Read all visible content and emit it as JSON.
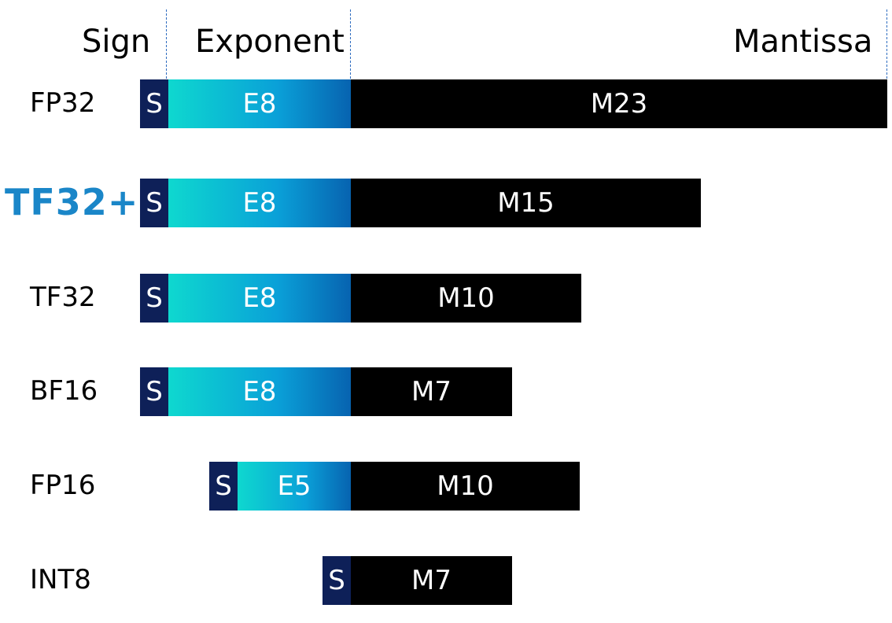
{
  "headers": {
    "sign": "Sign",
    "exponent": "Exponent",
    "mantissa": "Mantissa"
  },
  "formats": [
    {
      "name": "FP32",
      "sign": "S",
      "exponent": "E8",
      "mantissa": "M23",
      "exp_bits": 8,
      "man_bits": 23,
      "highlight": false
    },
    {
      "name": "TF32+",
      "sign": "S",
      "exponent": "E8",
      "mantissa": "M15",
      "exp_bits": 8,
      "man_bits": 15,
      "highlight": true
    },
    {
      "name": "TF32",
      "sign": "S",
      "exponent": "E8",
      "mantissa": "M10",
      "exp_bits": 8,
      "man_bits": 10,
      "highlight": false
    },
    {
      "name": "BF16",
      "sign": "S",
      "exponent": "E8",
      "mantissa": "M7",
      "exp_bits": 8,
      "man_bits": 7,
      "highlight": false
    },
    {
      "name": "FP16",
      "sign": "S",
      "exponent": "E5",
      "mantissa": "M10",
      "exp_bits": 5,
      "man_bits": 10,
      "highlight": false
    },
    {
      "name": "INT8",
      "sign": "S",
      "exponent": "",
      "mantissa": "M7",
      "exp_bits": 0,
      "man_bits": 7,
      "highlight": false
    }
  ],
  "colors": {
    "sign": "#0e2058",
    "exponent_start": "#0ed8cf",
    "exponent_end": "#0763b0",
    "mantissa": "#000000",
    "highlight_label": "#1a86c8",
    "divider": "#2e6cc0"
  }
}
